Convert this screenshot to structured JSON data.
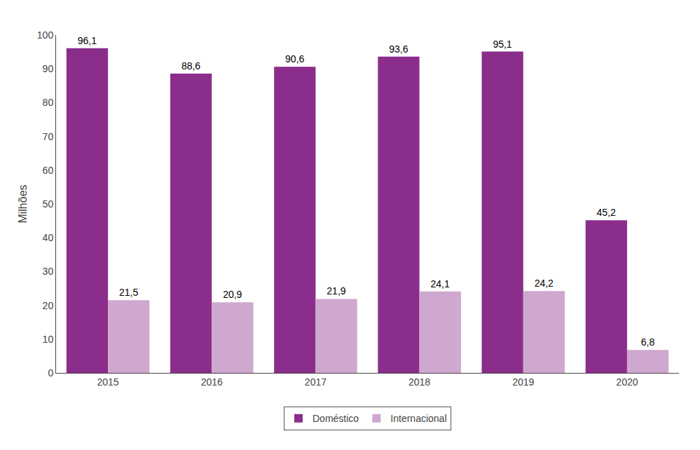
{
  "chart_data": {
    "type": "bar",
    "categories": [
      "2015",
      "2016",
      "2017",
      "2018",
      "2019",
      "2020"
    ],
    "series": [
      {
        "name": "Doméstico",
        "color": "#8B2D8B",
        "values": [
          96.1,
          88.6,
          90.6,
          93.6,
          95.1,
          45.2
        ],
        "value_labels": [
          "96,1",
          "88,6",
          "90,6",
          "93,6",
          "95,1",
          "45,2"
        ]
      },
      {
        "name": "Internacional",
        "color": "#CFA8CF",
        "values": [
          21.5,
          20.9,
          21.9,
          24.1,
          24.2,
          6.8
        ],
        "value_labels": [
          "21,5",
          "20,9",
          "21,9",
          "24,1",
          "24,2",
          "6,8"
        ]
      }
    ],
    "ylabel": "Milhões",
    "ylim": [
      0,
      100
    ],
    "yticks": [
      0,
      10,
      20,
      30,
      40,
      50,
      60,
      70,
      80,
      90,
      100
    ],
    "grid": false,
    "legend": "bottom",
    "data_labels": true
  }
}
